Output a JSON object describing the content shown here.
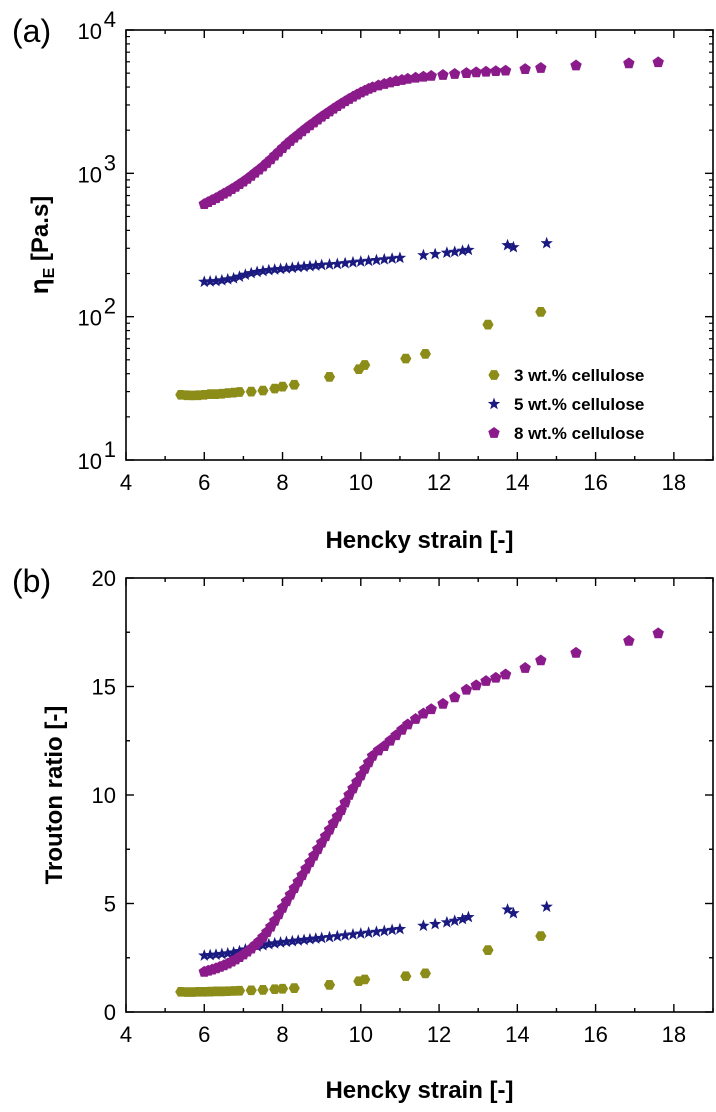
{
  "chart_data": [
    {
      "panel_label": "(a)",
      "type": "scatter",
      "xlabel": "Hencky strain [-]",
      "ylabel_main": "η",
      "ylabel_sub": "E",
      "ylabel_rest": " [Pa.s]",
      "yscale": "log",
      "xlim": [
        4,
        19
      ],
      "ylim": [
        10,
        10000
      ],
      "xticks": [
        4,
        6,
        8,
        10,
        12,
        14,
        16,
        18
      ],
      "yticks": [
        {
          "value": 10,
          "base": "10",
          "exp": "1"
        },
        {
          "value": 100,
          "base": "10",
          "exp": "2"
        },
        {
          "value": 1000,
          "base": "10",
          "exp": "3"
        },
        {
          "value": 10000,
          "base": "10",
          "exp": "4"
        }
      ],
      "legend": "lower-right",
      "series": [
        {
          "name": "3 wt.% cellulose",
          "marker": "hexagon",
          "color": "#8c8c18",
          "points": [
            [
              5.4,
              28.5
            ],
            [
              5.55,
              28.3
            ],
            [
              5.7,
              28.2
            ],
            [
              5.85,
              28.3
            ],
            [
              6.0,
              28.5
            ],
            [
              6.15,
              28.8
            ],
            [
              6.3,
              28.8
            ],
            [
              6.45,
              29.0
            ],
            [
              6.6,
              29.3
            ],
            [
              6.75,
              29.5
            ],
            [
              6.9,
              29.8
            ],
            [
              7.2,
              30.0
            ],
            [
              7.5,
              30.5
            ],
            [
              7.8,
              31.5
            ],
            [
              8.0,
              32.5
            ],
            [
              8.3,
              33.5
            ],
            [
              9.2,
              38.0
            ],
            [
              9.95,
              43.0
            ],
            [
              10.1,
              46.0
            ],
            [
              11.15,
              51.0
            ],
            [
              11.65,
              55.0
            ],
            [
              13.25,
              88.0
            ],
            [
              14.6,
              108.0
            ]
          ]
        },
        {
          "name": "5 wt.% cellulose",
          "marker": "star",
          "color": "#1a1a80",
          "points": [
            [
              6.0,
              175
            ],
            [
              6.15,
              176
            ],
            [
              6.3,
              177
            ],
            [
              6.45,
              179
            ],
            [
              6.6,
              182
            ],
            [
              6.75,
              185
            ],
            [
              6.9,
              190
            ],
            [
              7.05,
              196
            ],
            [
              7.2,
              201
            ],
            [
              7.35,
              205
            ],
            [
              7.5,
              208
            ],
            [
              7.65,
              211
            ],
            [
              7.8,
              213
            ],
            [
              7.95,
              215
            ],
            [
              8.1,
              217
            ],
            [
              8.25,
              219
            ],
            [
              8.4,
              221
            ],
            [
              8.55,
              223
            ],
            [
              8.7,
              225
            ],
            [
              8.85,
              227
            ],
            [
              9.0,
              229
            ],
            [
              9.2,
              231
            ],
            [
              9.4,
              233
            ],
            [
              9.6,
              236
            ],
            [
              9.8,
              239
            ],
            [
              10.0,
              242
            ],
            [
              10.2,
              245
            ],
            [
              10.4,
              248
            ],
            [
              10.6,
              251
            ],
            [
              10.8,
              254
            ],
            [
              11.0,
              257
            ],
            [
              11.6,
              268
            ],
            [
              11.9,
              273
            ],
            [
              12.2,
              279
            ],
            [
              12.4,
              283
            ],
            [
              12.6,
              288
            ],
            [
              12.75,
              292
            ],
            [
              13.75,
              315
            ],
            [
              13.9,
              305
            ],
            [
              14.75,
              325
            ]
          ]
        },
        {
          "name": "8 wt.% cellulose",
          "marker": "pentagon",
          "color": "#8b1a8b",
          "points": [
            [
              6.0,
              610
            ],
            [
              6.1,
              630
            ],
            [
              6.2,
              650
            ],
            [
              6.3,
              670
            ],
            [
              6.4,
              695
            ],
            [
              6.5,
              720
            ],
            [
              6.6,
              745
            ],
            [
              6.7,
              775
            ],
            [
              6.8,
              805
            ],
            [
              6.9,
              840
            ],
            [
              7.0,
              875
            ],
            [
              7.1,
              915
            ],
            [
              7.2,
              960
            ],
            [
              7.3,
              1010
            ],
            [
              7.4,
              1060
            ],
            [
              7.5,
              1115
            ],
            [
              7.6,
              1180
            ],
            [
              7.7,
              1250
            ],
            [
              7.8,
              1330
            ],
            [
              7.9,
              1410
            ],
            [
              8.0,
              1500
            ],
            [
              8.1,
              1590
            ],
            [
              8.2,
              1680
            ],
            [
              8.3,
              1770
            ],
            [
              8.4,
              1860
            ],
            [
              8.5,
              1960
            ],
            [
              8.6,
              2060
            ],
            [
              8.7,
              2160
            ],
            [
              8.8,
              2260
            ],
            [
              8.9,
              2370
            ],
            [
              9.0,
              2480
            ],
            [
              9.1,
              2590
            ],
            [
              9.2,
              2700
            ],
            [
              9.3,
              2820
            ],
            [
              9.4,
              2940
            ],
            [
              9.5,
              3060
            ],
            [
              9.6,
              3180
            ],
            [
              9.7,
              3300
            ],
            [
              9.8,
              3420
            ],
            [
              9.9,
              3540
            ],
            [
              10.0,
              3660
            ],
            [
              10.1,
              3770
            ],
            [
              10.2,
              3880
            ],
            [
              10.3,
              3980
            ],
            [
              10.45,
              4100
            ],
            [
              10.6,
              4200
            ],
            [
              10.75,
              4300
            ],
            [
              10.9,
              4400
            ],
            [
              11.05,
              4480
            ],
            [
              11.2,
              4560
            ],
            [
              11.4,
              4640
            ],
            [
              11.6,
              4720
            ],
            [
              11.8,
              4780
            ],
            [
              12.1,
              4850
            ],
            [
              12.4,
              4930
            ],
            [
              12.7,
              5000
            ],
            [
              12.95,
              5060
            ],
            [
              13.2,
              5110
            ],
            [
              13.45,
              5160
            ],
            [
              13.7,
              5200
            ],
            [
              14.2,
              5330
            ],
            [
              14.6,
              5430
            ],
            [
              15.5,
              5650
            ],
            [
              16.85,
              5850
            ],
            [
              17.6,
              5950
            ]
          ]
        }
      ]
    },
    {
      "panel_label": "(b)",
      "type": "scatter",
      "xlabel": "Hencky strain [-]",
      "ylabel": "Trouton ratio [-]",
      "yscale": "linear",
      "xlim": [
        4,
        19
      ],
      "ylim": [
        0,
        20
      ],
      "xticks": [
        4,
        6,
        8,
        10,
        12,
        14,
        16,
        18
      ],
      "yticks": [
        0,
        5,
        10,
        15,
        20
      ],
      "series": [
        {
          "name": "3 wt.% cellulose",
          "marker": "hexagon",
          "color": "#8c8c18",
          "points": [
            [
              5.4,
              0.93
            ],
            [
              5.55,
              0.92
            ],
            [
              5.7,
              0.92
            ],
            [
              5.85,
              0.93
            ],
            [
              6.0,
              0.93
            ],
            [
              6.15,
              0.94
            ],
            [
              6.3,
              0.95
            ],
            [
              6.45,
              0.95
            ],
            [
              6.6,
              0.96
            ],
            [
              6.75,
              0.97
            ],
            [
              6.9,
              0.98
            ],
            [
              7.2,
              1.0
            ],
            [
              7.5,
              1.02
            ],
            [
              7.8,
              1.05
            ],
            [
              8.0,
              1.07
            ],
            [
              8.3,
              1.1
            ],
            [
              9.2,
              1.25
            ],
            [
              9.95,
              1.42
            ],
            [
              10.1,
              1.5
            ],
            [
              11.15,
              1.65
            ],
            [
              11.65,
              1.78
            ],
            [
              13.25,
              2.85
            ],
            [
              14.6,
              3.5
            ]
          ]
        },
        {
          "name": "5 wt.% cellulose",
          "marker": "star",
          "color": "#1a1a80",
          "points": [
            [
              6.0,
              2.6
            ],
            [
              6.15,
              2.62
            ],
            [
              6.3,
              2.64
            ],
            [
              6.45,
              2.67
            ],
            [
              6.6,
              2.7
            ],
            [
              6.75,
              2.74
            ],
            [
              6.9,
              2.8
            ],
            [
              7.05,
              2.88
            ],
            [
              7.2,
              2.95
            ],
            [
              7.35,
              3.02
            ],
            [
              7.5,
              3.07
            ],
            [
              7.65,
              3.12
            ],
            [
              7.8,
              3.16
            ],
            [
              7.95,
              3.2
            ],
            [
              8.1,
              3.23
            ],
            [
              8.25,
              3.26
            ],
            [
              8.4,
              3.29
            ],
            [
              8.55,
              3.32
            ],
            [
              8.7,
              3.35
            ],
            [
              8.85,
              3.38
            ],
            [
              9.0,
              3.41
            ],
            [
              9.2,
              3.45
            ],
            [
              9.4,
              3.49
            ],
            [
              9.6,
              3.53
            ],
            [
              9.8,
              3.57
            ],
            [
              10.0,
              3.61
            ],
            [
              10.2,
              3.65
            ],
            [
              10.4,
              3.69
            ],
            [
              10.6,
              3.73
            ],
            [
              10.8,
              3.78
            ],
            [
              11.0,
              3.82
            ],
            [
              11.6,
              3.97
            ],
            [
              11.9,
              4.05
            ],
            [
              12.2,
              4.13
            ],
            [
              12.4,
              4.2
            ],
            [
              12.6,
              4.28
            ],
            [
              12.75,
              4.37
            ],
            [
              13.75,
              4.72
            ],
            [
              13.9,
              4.55
            ],
            [
              14.75,
              4.85
            ]
          ]
        },
        {
          "name": "8 wt.% cellulose",
          "marker": "pentagon",
          "color": "#8b1a8b",
          "points": [
            [
              6.0,
              1.85
            ],
            [
              6.1,
              1.9
            ],
            [
              6.2,
              1.95
            ],
            [
              6.3,
              2.01
            ],
            [
              6.4,
              2.08
            ],
            [
              6.5,
              2.15
            ],
            [
              6.6,
              2.23
            ],
            [
              6.7,
              2.32
            ],
            [
              6.8,
              2.42
            ],
            [
              6.9,
              2.53
            ],
            [
              7.0,
              2.65
            ],
            [
              7.1,
              2.78
            ],
            [
              7.2,
              2.92
            ],
            [
              7.3,
              3.08
            ],
            [
              7.4,
              3.25
            ],
            [
              7.5,
              3.45
            ],
            [
              7.6,
              3.68
            ],
            [
              7.7,
              3.93
            ],
            [
              7.8,
              4.2
            ],
            [
              7.9,
              4.5
            ],
            [
              8.0,
              4.8
            ],
            [
              8.1,
              5.1
            ],
            [
              8.2,
              5.4
            ],
            [
              8.3,
              5.7
            ],
            [
              8.4,
              6.0
            ],
            [
              8.5,
              6.3
            ],
            [
              8.6,
              6.6
            ],
            [
              8.7,
              6.9
            ],
            [
              8.8,
              7.2
            ],
            [
              8.9,
              7.5
            ],
            [
              9.0,
              7.8
            ],
            [
              9.1,
              8.1
            ],
            [
              9.2,
              8.4
            ],
            [
              9.3,
              8.7
            ],
            [
              9.4,
              9.0
            ],
            [
              9.5,
              9.3
            ],
            [
              9.6,
              9.65
            ],
            [
              9.7,
              10.0
            ],
            [
              9.8,
              10.3
            ],
            [
              9.9,
              10.6
            ],
            [
              10.0,
              10.9
            ],
            [
              10.1,
              11.2
            ],
            [
              10.2,
              11.5
            ],
            [
              10.3,
              11.8
            ],
            [
              10.45,
              12.05
            ],
            [
              10.6,
              12.25
            ],
            [
              10.75,
              12.5
            ],
            [
              10.9,
              12.75
            ],
            [
              11.05,
              13.0
            ],
            [
              11.2,
              13.25
            ],
            [
              11.4,
              13.5
            ],
            [
              11.6,
              13.75
            ],
            [
              11.8,
              13.95
            ],
            [
              12.1,
              14.2
            ],
            [
              12.4,
              14.5
            ],
            [
              12.7,
              14.85
            ],
            [
              12.95,
              15.05
            ],
            [
              13.2,
              15.25
            ],
            [
              13.45,
              15.4
            ],
            [
              13.7,
              15.55
            ],
            [
              14.2,
              15.85
            ],
            [
              14.6,
              16.2
            ],
            [
              15.5,
              16.55
            ],
            [
              16.85,
              17.1
            ],
            [
              17.6,
              17.45
            ]
          ]
        }
      ]
    }
  ]
}
